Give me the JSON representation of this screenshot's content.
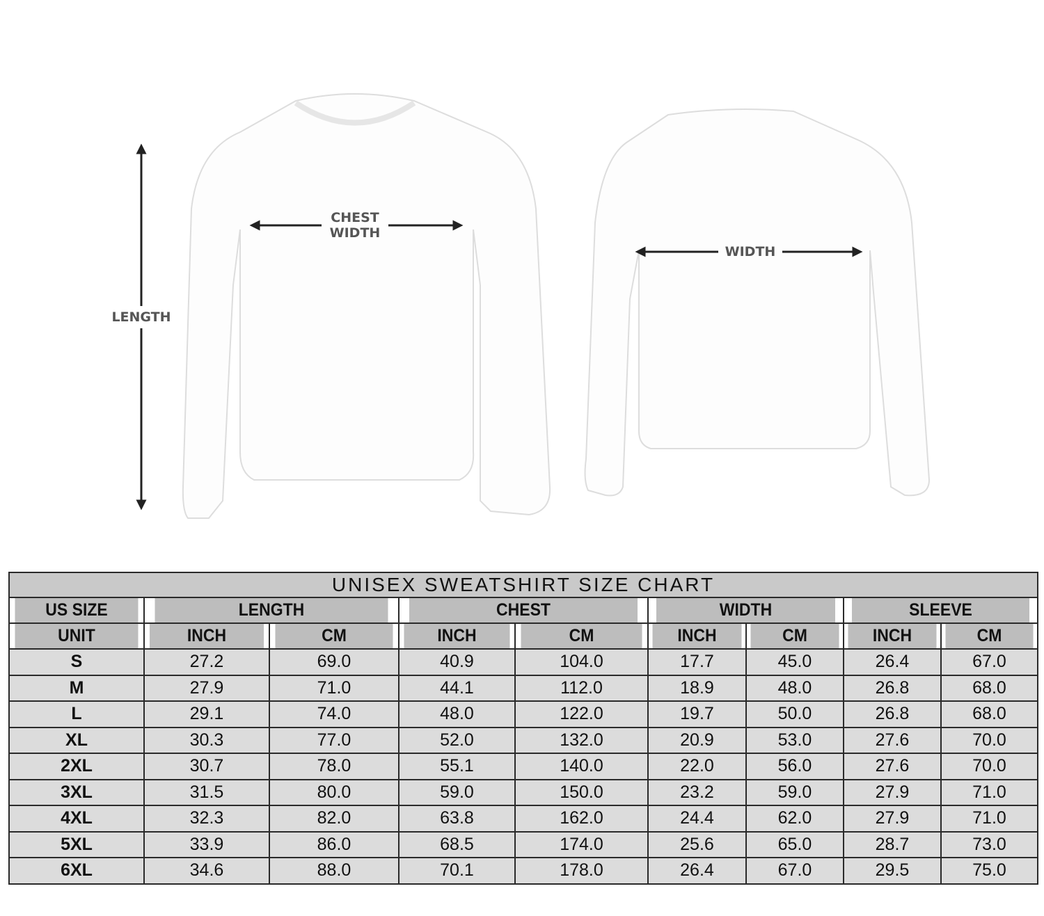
{
  "labels": {
    "length": "LENGTH",
    "chest_width_line1": "CHEST",
    "chest_width_line2": "WIDTH",
    "width": "WIDTH"
  },
  "table": {
    "title": "UNISEX SWEATSHIRT SIZE CHART",
    "groups": [
      "US SIZE",
      "LENGTH",
      "CHEST",
      "WIDTH",
      "SLEEVE"
    ],
    "units": [
      "UNIT",
      "INCH",
      "CM",
      "INCH",
      "CM",
      "INCH",
      "CM",
      "INCH",
      "CM"
    ],
    "rows": [
      [
        "S",
        "27.2",
        "69.0",
        "40.9",
        "104.0",
        "17.7",
        "45.0",
        "26.4",
        "67.0"
      ],
      [
        "M",
        "27.9",
        "71.0",
        "44.1",
        "112.0",
        "18.9",
        "48.0",
        "26.8",
        "68.0"
      ],
      [
        "L",
        "29.1",
        "74.0",
        "48.0",
        "122.0",
        "19.7",
        "50.0",
        "26.8",
        "68.0"
      ],
      [
        "XL",
        "30.3",
        "77.0",
        "52.0",
        "132.0",
        "20.9",
        "53.0",
        "27.6",
        "70.0"
      ],
      [
        "2XL",
        "30.7",
        "78.0",
        "55.1",
        "140.0",
        "22.0",
        "56.0",
        "27.6",
        "70.0"
      ],
      [
        "3XL",
        "31.5",
        "80.0",
        "59.0",
        "150.0",
        "23.2",
        "59.0",
        "27.9",
        "71.0"
      ],
      [
        "4XL",
        "32.3",
        "82.0",
        "63.8",
        "162.0",
        "24.4",
        "62.0",
        "27.9",
        "71.0"
      ],
      [
        "5XL",
        "33.9",
        "86.0",
        "68.5",
        "174.0",
        "25.6",
        "65.0",
        "28.7",
        "73.0"
      ],
      [
        "6XL",
        "34.6",
        "88.0",
        "70.1",
        "178.0",
        "26.4",
        "67.0",
        "29.5",
        "75.0"
      ]
    ]
  }
}
